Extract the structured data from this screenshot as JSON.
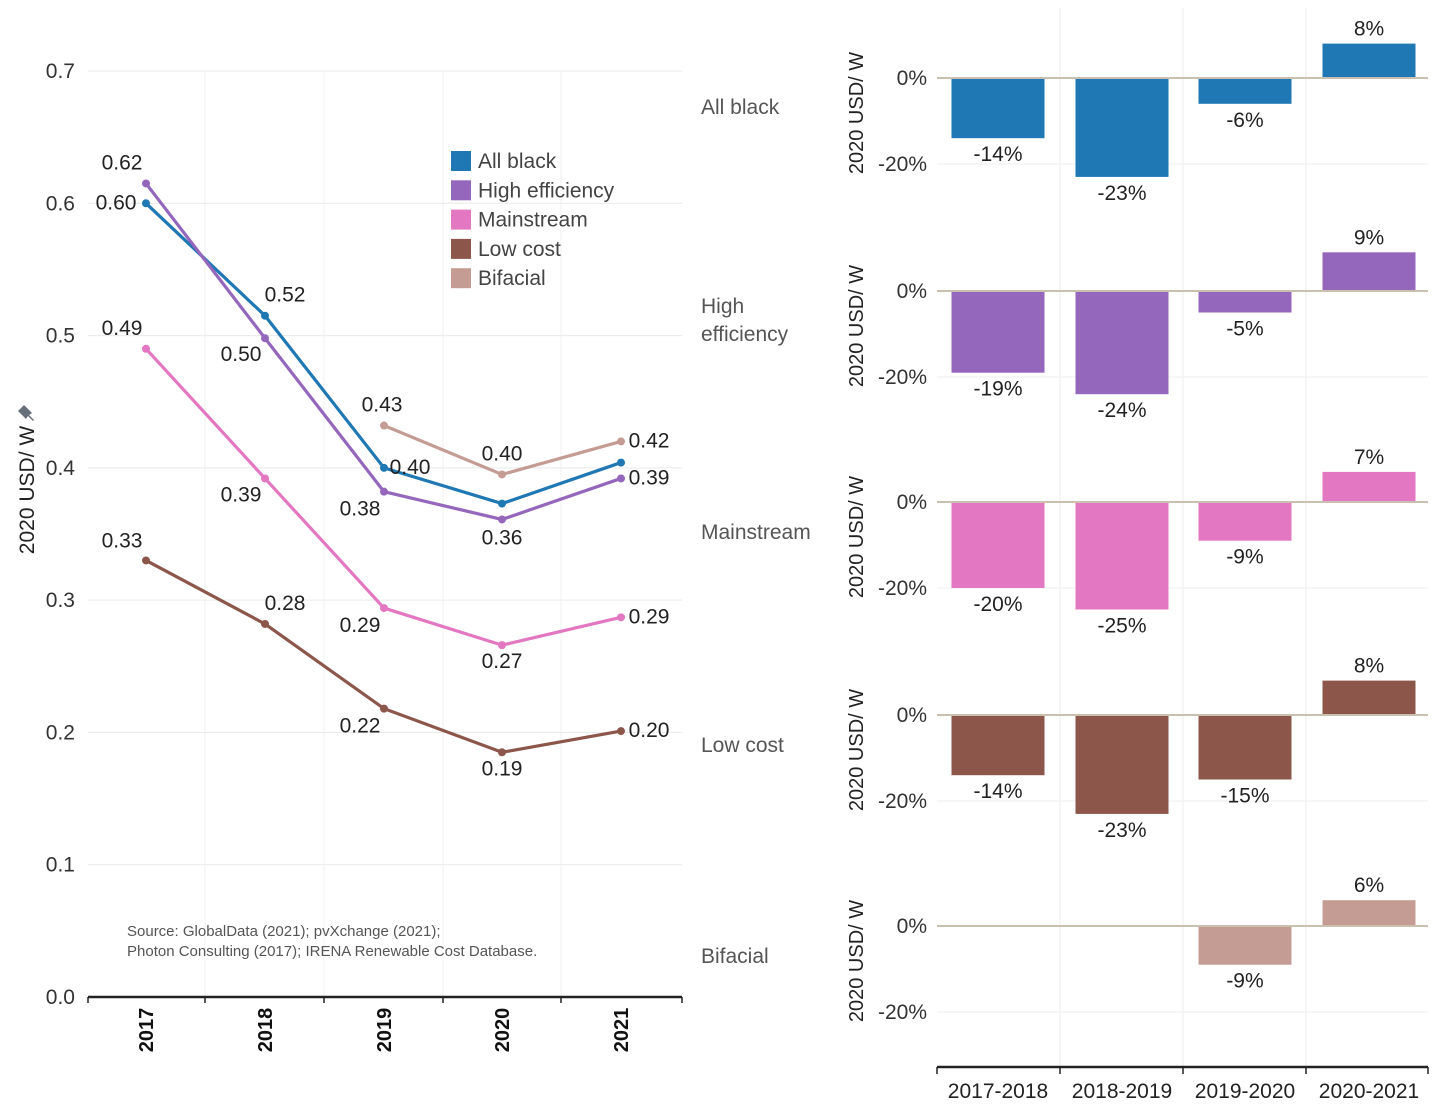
{
  "source_note": {
    "line1": "Source: GlobalData (2021); pvXchange (2021);",
    "line2": "Photon Consulting (2017); IRENA Renewable Cost Database."
  },
  "chart_data": [
    {
      "type": "line",
      "ylabel": "2020 USD/ W",
      "ylim": [
        0,
        0.7
      ],
      "yticks": [
        "0.0",
        "0.1",
        "0.2",
        "0.3",
        "0.4",
        "0.5",
        "0.6",
        "0.7"
      ],
      "x": [
        "2017",
        "2018",
        "2019",
        "2020",
        "2021"
      ],
      "legend_position": "top-right",
      "grid": true,
      "series": [
        {
          "name": "All black",
          "color": "#1f77b4",
          "values": [
            0.6,
            0.515,
            0.4,
            0.373,
            0.404
          ],
          "labels": [
            "0.60",
            "0.52",
            "0.40",
            "",
            ""
          ]
        },
        {
          "name": "High efficiency",
          "color": "#9467bd",
          "values": [
            0.615,
            0.498,
            0.382,
            0.361,
            0.392
          ],
          "labels": [
            "0.62",
            "0.50",
            "0.38",
            "0.36",
            "0.39"
          ]
        },
        {
          "name": "Mainstream",
          "color": "#e377c2",
          "values": [
            0.49,
            0.392,
            0.294,
            0.266,
            0.287
          ],
          "labels": [
            "0.49",
            "0.39",
            "0.29",
            "0.27",
            "0.29"
          ]
        },
        {
          "name": "Low cost",
          "color": "#8c564b",
          "values": [
            0.33,
            0.282,
            0.218,
            0.185,
            0.201
          ],
          "labels": [
            "0.33",
            "0.28",
            "0.22",
            "0.19",
            "0.20"
          ]
        },
        {
          "name": "Bifacial",
          "color": "#c49c94",
          "values": [
            null,
            null,
            0.432,
            0.395,
            0.42
          ],
          "labels": [
            "",
            "",
            "0.43",
            "0.40",
            "0.42"
          ]
        }
      ]
    },
    {
      "type": "bar",
      "ylabel": "2020 USD/ W",
      "yticks": [
        "0%",
        "-20%"
      ],
      "categories": [
        "2017-2018",
        "2018-2019",
        "2019-2020",
        "2020-2021"
      ],
      "panels": [
        {
          "name": "All black",
          "color": "#1f77b4",
          "values": [
            -14,
            -23,
            -6,
            8
          ],
          "labels": [
            "-14%",
            "-23%",
            "-6%",
            "8%"
          ]
        },
        {
          "name": "High efficiency",
          "name_lines": [
            "High",
            "efficiency"
          ],
          "color": "#9467bd",
          "values": [
            -19,
            -24,
            -5,
            9
          ],
          "labels": [
            "-19%",
            "-24%",
            "-5%",
            "9%"
          ]
        },
        {
          "name": "Mainstream",
          "color": "#e377c2",
          "values": [
            -20,
            -25,
            -9,
            7
          ],
          "labels": [
            "-20%",
            "-25%",
            "-9%",
            "7%"
          ]
        },
        {
          "name": "Low cost",
          "color": "#8c564b",
          "values": [
            -14,
            -23,
            -15,
            8
          ],
          "labels": [
            "-14%",
            "-23%",
            "-15%",
            "8%"
          ]
        },
        {
          "name": "Bifacial",
          "color": "#c49c94",
          "values": [
            null,
            null,
            -9,
            6
          ],
          "labels": [
            "",
            "",
            "-9%",
            "6%"
          ]
        }
      ]
    }
  ]
}
